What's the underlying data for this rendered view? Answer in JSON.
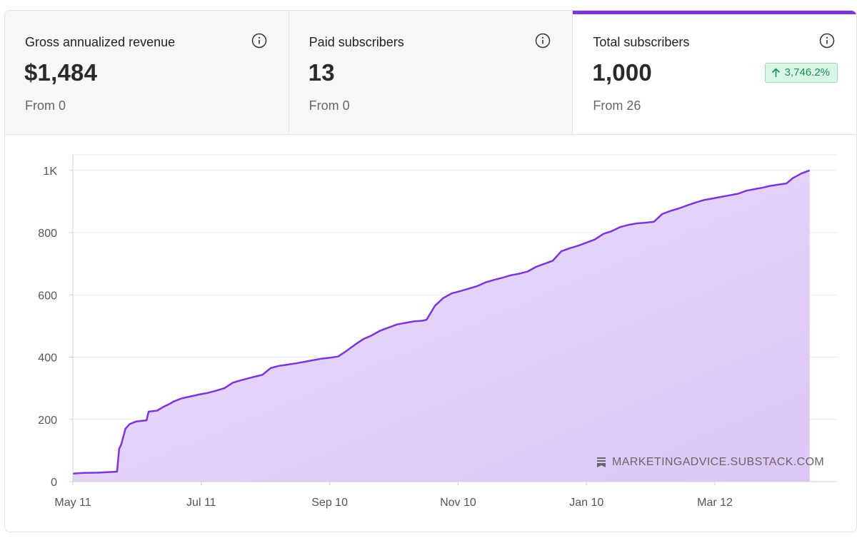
{
  "tabs": [
    {
      "label": "Gross annualized revenue",
      "value": "$1,484",
      "sub": "From 0",
      "active": false
    },
    {
      "label": "Paid subscribers",
      "value": "13",
      "sub": "From 0",
      "active": false
    },
    {
      "label": "Total subscribers",
      "value": "1,000",
      "sub": "From 26",
      "active": true,
      "badge": "3,746.2%"
    }
  ],
  "watermark": {
    "text": "MARKETINGADVICE.SUBSTACK.COM",
    "icon": "substack-logo-icon"
  },
  "colors": {
    "accent": "#7c35d6",
    "area_fill_top": "#dcc6f6",
    "area_fill_bottom": "#eadcfa",
    "badge_bg": "#d9f5e6",
    "badge_text": "#1c8d53"
  },
  "chart_data": {
    "type": "area",
    "title": "",
    "xlabel": "",
    "ylabel": "",
    "ylim": [
      0,
      1050
    ],
    "yticks": [
      0,
      200,
      400,
      600,
      800,
      1000
    ],
    "ytick_labels": [
      "0",
      "200",
      "400",
      "600",
      "800",
      "1K"
    ],
    "xticks": [
      "May 11",
      "Jul 11",
      "Sep 10",
      "Nov 10",
      "Jan 10",
      "Mar 12"
    ],
    "xtick_days": [
      0,
      61,
      122,
      183,
      244,
      305
    ],
    "x_end_day": 363,
    "grid": true,
    "series": [
      {
        "points": [
          [
            0,
            26
          ],
          [
            5,
            28
          ],
          [
            12,
            29
          ],
          [
            18,
            31
          ],
          [
            21,
            32
          ],
          [
            22,
            105
          ],
          [
            23,
            120
          ],
          [
            25,
            170
          ],
          [
            27,
            185
          ],
          [
            30,
            193
          ],
          [
            35,
            197
          ],
          [
            36,
            225
          ],
          [
            40,
            228
          ],
          [
            43,
            240
          ],
          [
            46,
            250
          ],
          [
            48,
            258
          ],
          [
            52,
            268
          ],
          [
            56,
            274
          ],
          [
            60,
            280
          ],
          [
            64,
            285
          ],
          [
            68,
            292
          ],
          [
            72,
            300
          ],
          [
            76,
            318
          ],
          [
            80,
            326
          ],
          [
            85,
            335
          ],
          [
            90,
            343
          ],
          [
            94,
            365
          ],
          [
            98,
            372
          ],
          [
            102,
            376
          ],
          [
            106,
            380
          ],
          [
            110,
            385
          ],
          [
            114,
            390
          ],
          [
            118,
            395
          ],
          [
            122,
            398
          ],
          [
            126,
            402
          ],
          [
            130,
            420
          ],
          [
            134,
            440
          ],
          [
            138,
            458
          ],
          [
            142,
            470
          ],
          [
            146,
            485
          ],
          [
            150,
            495
          ],
          [
            154,
            505
          ],
          [
            158,
            510
          ],
          [
            162,
            515
          ],
          [
            166,
            517
          ],
          [
            168,
            520
          ],
          [
            172,
            565
          ],
          [
            176,
            590
          ],
          [
            180,
            605
          ],
          [
            184,
            612
          ],
          [
            188,
            620
          ],
          [
            192,
            628
          ],
          [
            196,
            640
          ],
          [
            200,
            648
          ],
          [
            204,
            655
          ],
          [
            208,
            663
          ],
          [
            212,
            668
          ],
          [
            216,
            675
          ],
          [
            220,
            690
          ],
          [
            224,
            700
          ],
          [
            228,
            710
          ],
          [
            232,
            740
          ],
          [
            236,
            750
          ],
          [
            240,
            758
          ],
          [
            244,
            768
          ],
          [
            248,
            778
          ],
          [
            252,
            796
          ],
          [
            256,
            805
          ],
          [
            260,
            818
          ],
          [
            264,
            825
          ],
          [
            268,
            830
          ],
          [
            272,
            832
          ],
          [
            276,
            835
          ],
          [
            280,
            860
          ],
          [
            284,
            870
          ],
          [
            288,
            878
          ],
          [
            292,
            888
          ],
          [
            296,
            897
          ],
          [
            300,
            905
          ],
          [
            304,
            910
          ],
          [
            308,
            915
          ],
          [
            312,
            920
          ],
          [
            316,
            925
          ],
          [
            320,
            935
          ],
          [
            324,
            940
          ],
          [
            328,
            945
          ],
          [
            331,
            950
          ],
          [
            336,
            955
          ],
          [
            339,
            958
          ],
          [
            342,
            975
          ],
          [
            346,
            990
          ],
          [
            350,
            1000
          ]
        ]
      }
    ]
  }
}
